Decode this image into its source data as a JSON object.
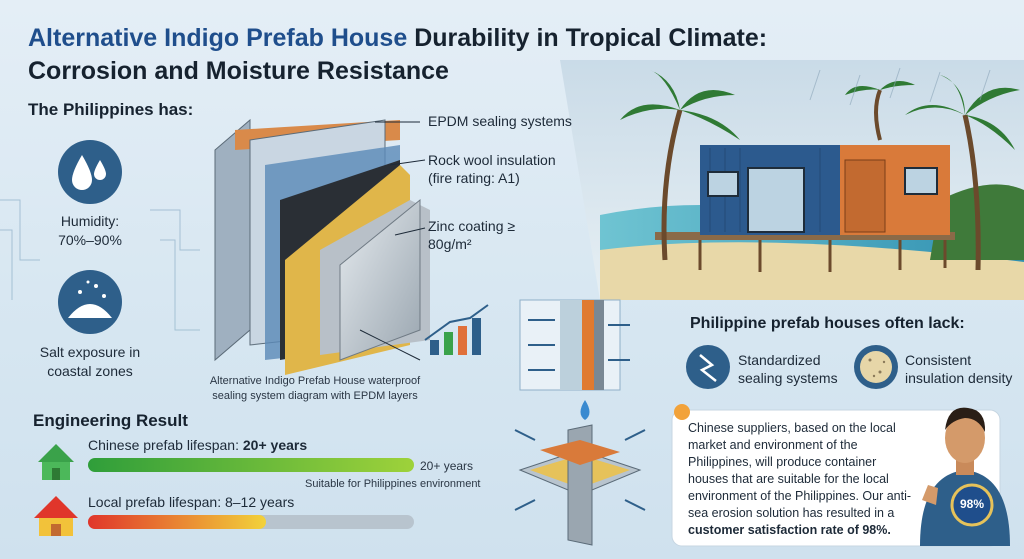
{
  "header": {
    "title_highlight": "Alternative Indigo Prefab House",
    "title_rest": "Durability in Tropical Climate:",
    "title_line2": "Corrosion and Moisture Resistance"
  },
  "conditions": {
    "heading": "The Philippines has:",
    "items": [
      {
        "label": "Humidity:",
        "value": "70%–90%"
      },
      {
        "label": "Salt exposure in coastal zones"
      }
    ]
  },
  "diagram": {
    "labels": [
      "EPDM sealing systems",
      "Rock wool insulation (fire rating: A1)",
      "Zinc coating ≥ 80g/m²"
    ],
    "caption": "Alternative Indigo Prefab House waterproof sealing system diagram with EPDM layers"
  },
  "engineering_result": {
    "heading": "Engineering Result",
    "rows": [
      {
        "label": "Chinese prefab lifespan:",
        "value": "20+ years",
        "bar_label": "20+ years",
        "note": "Suitable for Philippines environment"
      },
      {
        "label": "Local prefab lifespan: 8–12 years"
      }
    ]
  },
  "lacks": {
    "heading": "Philippine prefab houses often lack:",
    "items": [
      "Standardized sealing systems",
      "Consistent insulation density"
    ]
  },
  "testimonial": {
    "text": "Chinese suppliers, based on the local market and environment of the Philippines, will produce container houses that are suitable for the local environment of the Philippines. Our anti-sea erosion solution has resulted in a",
    "highlight": "customer satisfaction rate of 98%.",
    "badge": "98%"
  }
}
